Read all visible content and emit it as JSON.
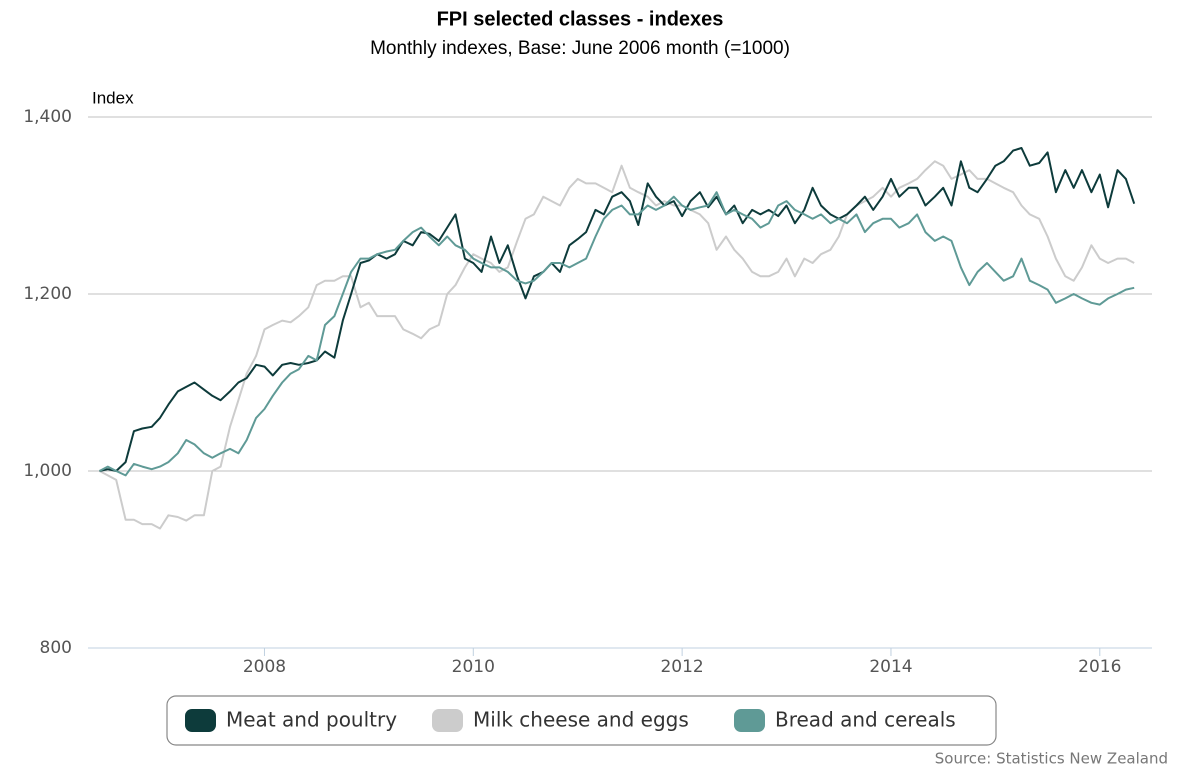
{
  "chart_data": {
    "type": "line",
    "title": "FPI selected classes - indexes",
    "subtitle": "Monthly indexes, Base: June 2006 month (=1000)",
    "y_label": "Index",
    "source": "Source: Statistics New Zealand",
    "x": [
      2006.42,
      2006.5,
      2006.58,
      2006.67,
      2006.75,
      2006.83,
      2006.92,
      2007.0,
      2007.08,
      2007.17,
      2007.25,
      2007.33,
      2007.42,
      2007.5,
      2007.58,
      2007.67,
      2007.75,
      2007.83,
      2007.92,
      2008.0,
      2008.08,
      2008.17,
      2008.25,
      2008.33,
      2008.42,
      2008.5,
      2008.58,
      2008.67,
      2008.75,
      2008.83,
      2008.92,
      2009.0,
      2009.08,
      2009.17,
      2009.25,
      2009.33,
      2009.42,
      2009.5,
      2009.58,
      2009.67,
      2009.75,
      2009.83,
      2009.92,
      2010.0,
      2010.08,
      2010.17,
      2010.25,
      2010.33,
      2010.42,
      2010.5,
      2010.58,
      2010.67,
      2010.75,
      2010.83,
      2010.92,
      2011.0,
      2011.08,
      2011.17,
      2011.25,
      2011.33,
      2011.42,
      2011.5,
      2011.58,
      2011.67,
      2011.75,
      2011.83,
      2011.92,
      2012.0,
      2012.08,
      2012.17,
      2012.25,
      2012.33,
      2012.42,
      2012.5,
      2012.58,
      2012.67,
      2012.75,
      2012.83,
      2012.92,
      2013.0,
      2013.08,
      2013.17,
      2013.25,
      2013.33,
      2013.42,
      2013.5,
      2013.58,
      2013.67,
      2013.75,
      2013.83,
      2013.92,
      2014.0,
      2014.08,
      2014.17,
      2014.25,
      2014.33,
      2014.42,
      2014.5,
      2014.58,
      2014.67,
      2014.75,
      2014.83,
      2014.92,
      2015.0,
      2015.08,
      2015.17,
      2015.25,
      2015.33,
      2015.42,
      2015.5,
      2015.58,
      2015.67,
      2015.75,
      2015.83,
      2015.92,
      2016.0,
      2016.08,
      2016.17,
      2016.25,
      2016.33
    ],
    "series": [
      {
        "name": "Meat and poultry",
        "color": "#0d3b3b",
        "values": [
          1000,
          1002,
          1000,
          1010,
          1045,
          1048,
          1050,
          1060,
          1075,
          1090,
          1095,
          1100,
          1092,
          1085,
          1080,
          1090,
          1100,
          1105,
          1120,
          1118,
          1108,
          1120,
          1122,
          1120,
          1122,
          1125,
          1135,
          1128,
          1170,
          1200,
          1235,
          1238,
          1245,
          1240,
          1245,
          1260,
          1255,
          1270,
          1268,
          1260,
          1275,
          1290,
          1240,
          1235,
          1225,
          1265,
          1235,
          1255,
          1220,
          1195,
          1220,
          1225,
          1235,
          1225,
          1255,
          1262,
          1270,
          1295,
          1290,
          1310,
          1315,
          1305,
          1278,
          1325,
          1310,
          1300,
          1305,
          1288,
          1305,
          1315,
          1298,
          1310,
          1290,
          1300,
          1280,
          1295,
          1290,
          1295,
          1288,
          1300,
          1280,
          1295,
          1320,
          1300,
          1290,
          1285,
          1290,
          1300,
          1310,
          1295,
          1310,
          1330,
          1310,
          1320,
          1320,
          1300,
          1310,
          1320,
          1300,
          1350,
          1320,
          1315,
          1330,
          1345,
          1350,
          1362,
          1365,
          1345,
          1348,
          1360,
          1315,
          1340,
          1320,
          1340,
          1315,
          1335,
          1298,
          1340,
          1330,
          1302
        ]
      },
      {
        "name": "Milk cheese and eggs",
        "color": "#cccccc",
        "values": [
          1000,
          995,
          990,
          945,
          945,
          940,
          940,
          935,
          950,
          948,
          944,
          950,
          950,
          1000,
          1005,
          1050,
          1080,
          1110,
          1130,
          1160,
          1165,
          1170,
          1168,
          1175,
          1185,
          1210,
          1215,
          1215,
          1220,
          1220,
          1185,
          1190,
          1175,
          1175,
          1175,
          1160,
          1155,
          1150,
          1160,
          1165,
          1200,
          1210,
          1230,
          1245,
          1240,
          1235,
          1225,
          1230,
          1260,
          1285,
          1290,
          1310,
          1305,
          1300,
          1320,
          1330,
          1325,
          1325,
          1320,
          1315,
          1345,
          1320,
          1315,
          1310,
          1300,
          1305,
          1300,
          1300,
          1295,
          1290,
          1280,
          1250,
          1265,
          1250,
          1240,
          1225,
          1220,
          1220,
          1225,
          1240,
          1220,
          1240,
          1235,
          1245,
          1250,
          1265,
          1290,
          1300,
          1305,
          1310,
          1320,
          1310,
          1320,
          1325,
          1330,
          1340,
          1350,
          1345,
          1330,
          1335,
          1340,
          1330,
          1330,
          1325,
          1320,
          1315,
          1300,
          1290,
          1285,
          1265,
          1240,
          1220,
          1215,
          1230,
          1255,
          1240,
          1235,
          1240,
          1240,
          1235
        ]
      },
      {
        "name": "Bread and cereals",
        "color": "#5f9a96",
        "values": [
          1000,
          1005,
          1000,
          995,
          1008,
          1005,
          1002,
          1005,
          1010,
          1020,
          1035,
          1030,
          1020,
          1015,
          1020,
          1025,
          1020,
          1035,
          1060,
          1070,
          1085,
          1100,
          1110,
          1115,
          1130,
          1125,
          1165,
          1175,
          1200,
          1225,
          1240,
          1240,
          1245,
          1248,
          1250,
          1260,
          1270,
          1275,
          1265,
          1255,
          1265,
          1255,
          1250,
          1240,
          1235,
          1230,
          1230,
          1225,
          1215,
          1212,
          1215,
          1225,
          1235,
          1235,
          1230,
          1235,
          1240,
          1265,
          1285,
          1295,
          1300,
          1290,
          1290,
          1300,
          1295,
          1300,
          1310,
          1300,
          1295,
          1298,
          1300,
          1315,
          1290,
          1295,
          1290,
          1285,
          1275,
          1280,
          1300,
          1305,
          1295,
          1290,
          1285,
          1290,
          1280,
          1285,
          1280,
          1290,
          1270,
          1280,
          1285,
          1285,
          1275,
          1280,
          1290,
          1270,
          1260,
          1265,
          1260,
          1230,
          1210,
          1225,
          1235,
          1225,
          1215,
          1220,
          1240,
          1215,
          1210,
          1205,
          1190,
          1195,
          1200,
          1195,
          1190,
          1188,
          1195,
          1200,
          1205,
          1207
        ]
      }
    ],
    "xlim": [
      2006.31,
      2016.5
    ],
    "xticks": [
      2008,
      2010,
      2012,
      2014,
      2016
    ],
    "ylim": [
      800,
      1400
    ],
    "yticks": [
      800,
      {
        "value": 1000,
        "label": "1,000"
      },
      {
        "value": 1200,
        "label": "1,200"
      },
      {
        "value": 1400,
        "label": "1,400"
      }
    ],
    "grid": true
  }
}
